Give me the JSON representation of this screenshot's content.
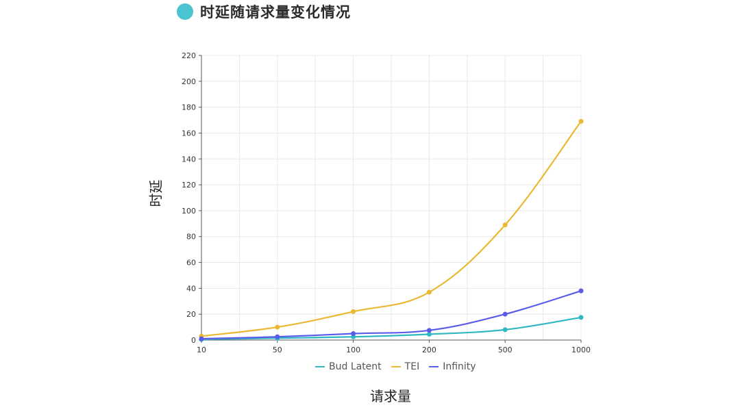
{
  "header": {
    "title": "时延随请求量变化情况"
  },
  "colors": {
    "title_dot": "#4cc3d0",
    "grid": "#e8e8ea",
    "axis": "#555555"
  },
  "chart_data": {
    "type": "line",
    "title": "时延随请求量变化情况",
    "xlabel": "请求量",
    "ylabel": "时延",
    "categories": [
      "10",
      "50",
      "100",
      "200",
      "500",
      "1000"
    ],
    "ylim": [
      0,
      220
    ],
    "yticks": [
      "0",
      "20",
      "40",
      "60",
      "80",
      "100",
      "120",
      "140",
      "160",
      "180",
      "200",
      "220"
    ],
    "grid": true,
    "legend_position": "bottom",
    "series": [
      {
        "name": "Bud Latent",
        "color": "#2fb8c2",
        "values": [
          0.5,
          1.5,
          2.5,
          4.5,
          8,
          17.5
        ]
      },
      {
        "name": "TEI",
        "color": "#e8b931",
        "values": [
          3,
          10,
          22,
          37,
          89,
          169
        ]
      },
      {
        "name": "Infinity",
        "color": "#5b5bea",
        "values": [
          1,
          2.5,
          5,
          7.5,
          20,
          38
        ]
      }
    ]
  }
}
